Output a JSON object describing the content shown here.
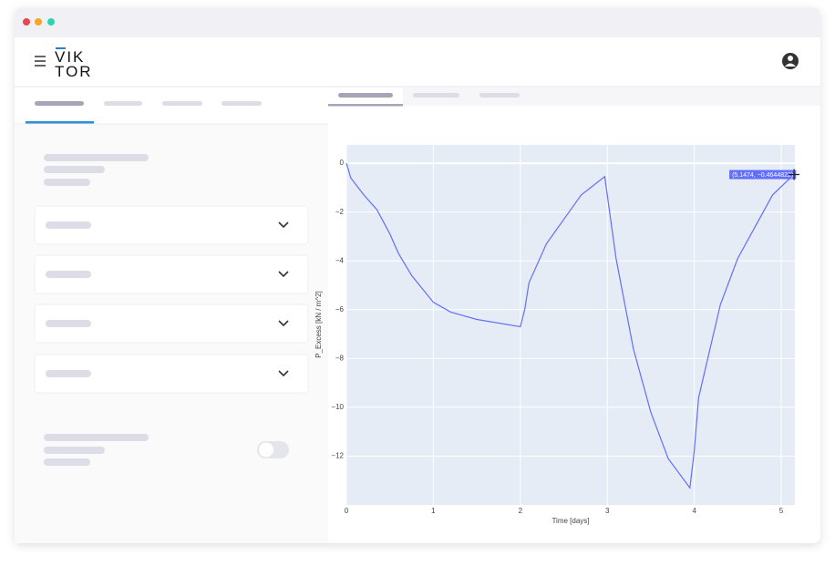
{
  "header": {
    "logo": [
      "VIK",
      "TOR"
    ]
  },
  "chart_data": {
    "type": "line",
    "xlabel": "Time [days]",
    "ylabel": "P_Excess [kN / m^2]",
    "xlim": [
      0,
      5.157
    ],
    "ylim": [
      -14,
      0.75
    ],
    "xticks": [
      0,
      1,
      2,
      3,
      4,
      5
    ],
    "yticks": [
      {
        "value": 0,
        "label": "0"
      },
      {
        "value": -2,
        "label": "−2"
      },
      {
        "value": -4,
        "label": "−4"
      },
      {
        "value": -6,
        "label": "−6"
      },
      {
        "value": -8,
        "label": "−8"
      },
      {
        "value": -10,
        "label": "−10"
      },
      {
        "value": -12,
        "label": "−12"
      }
    ],
    "grid": true,
    "series": [
      {
        "color": "#636efa",
        "x": [
          0,
          0.05,
          0.2,
          0.35,
          0.38,
          0.5,
          0.6,
          0.75,
          1.0,
          1.2,
          1.5,
          2.0,
          2.05,
          2.1,
          2.3,
          2.5,
          2.7,
          2.97,
          3.1,
          3.3,
          3.5,
          3.7,
          3.95,
          4.0,
          4.05,
          4.3,
          4.5,
          4.7,
          4.9,
          5.15
        ],
        "values": [
          0,
          -0.6,
          -1.3,
          -1.9,
          -2.1,
          -2.9,
          -3.7,
          -4.6,
          -5.7,
          -6.1,
          -6.4,
          -6.7,
          -6.0,
          -4.9,
          -3.3,
          -2.3,
          -1.3,
          -0.55,
          -3.9,
          -7.6,
          -10.2,
          -12.1,
          -13.3,
          -11.8,
          -9.6,
          -5.8,
          -3.9,
          -2.6,
          -1.3,
          -0.45
        ]
      }
    ],
    "hover": {
      "x": 5.1474,
      "y": -0.4644822,
      "label": "(5.1474, −0.4644822)",
      "color": "#636efa"
    }
  }
}
